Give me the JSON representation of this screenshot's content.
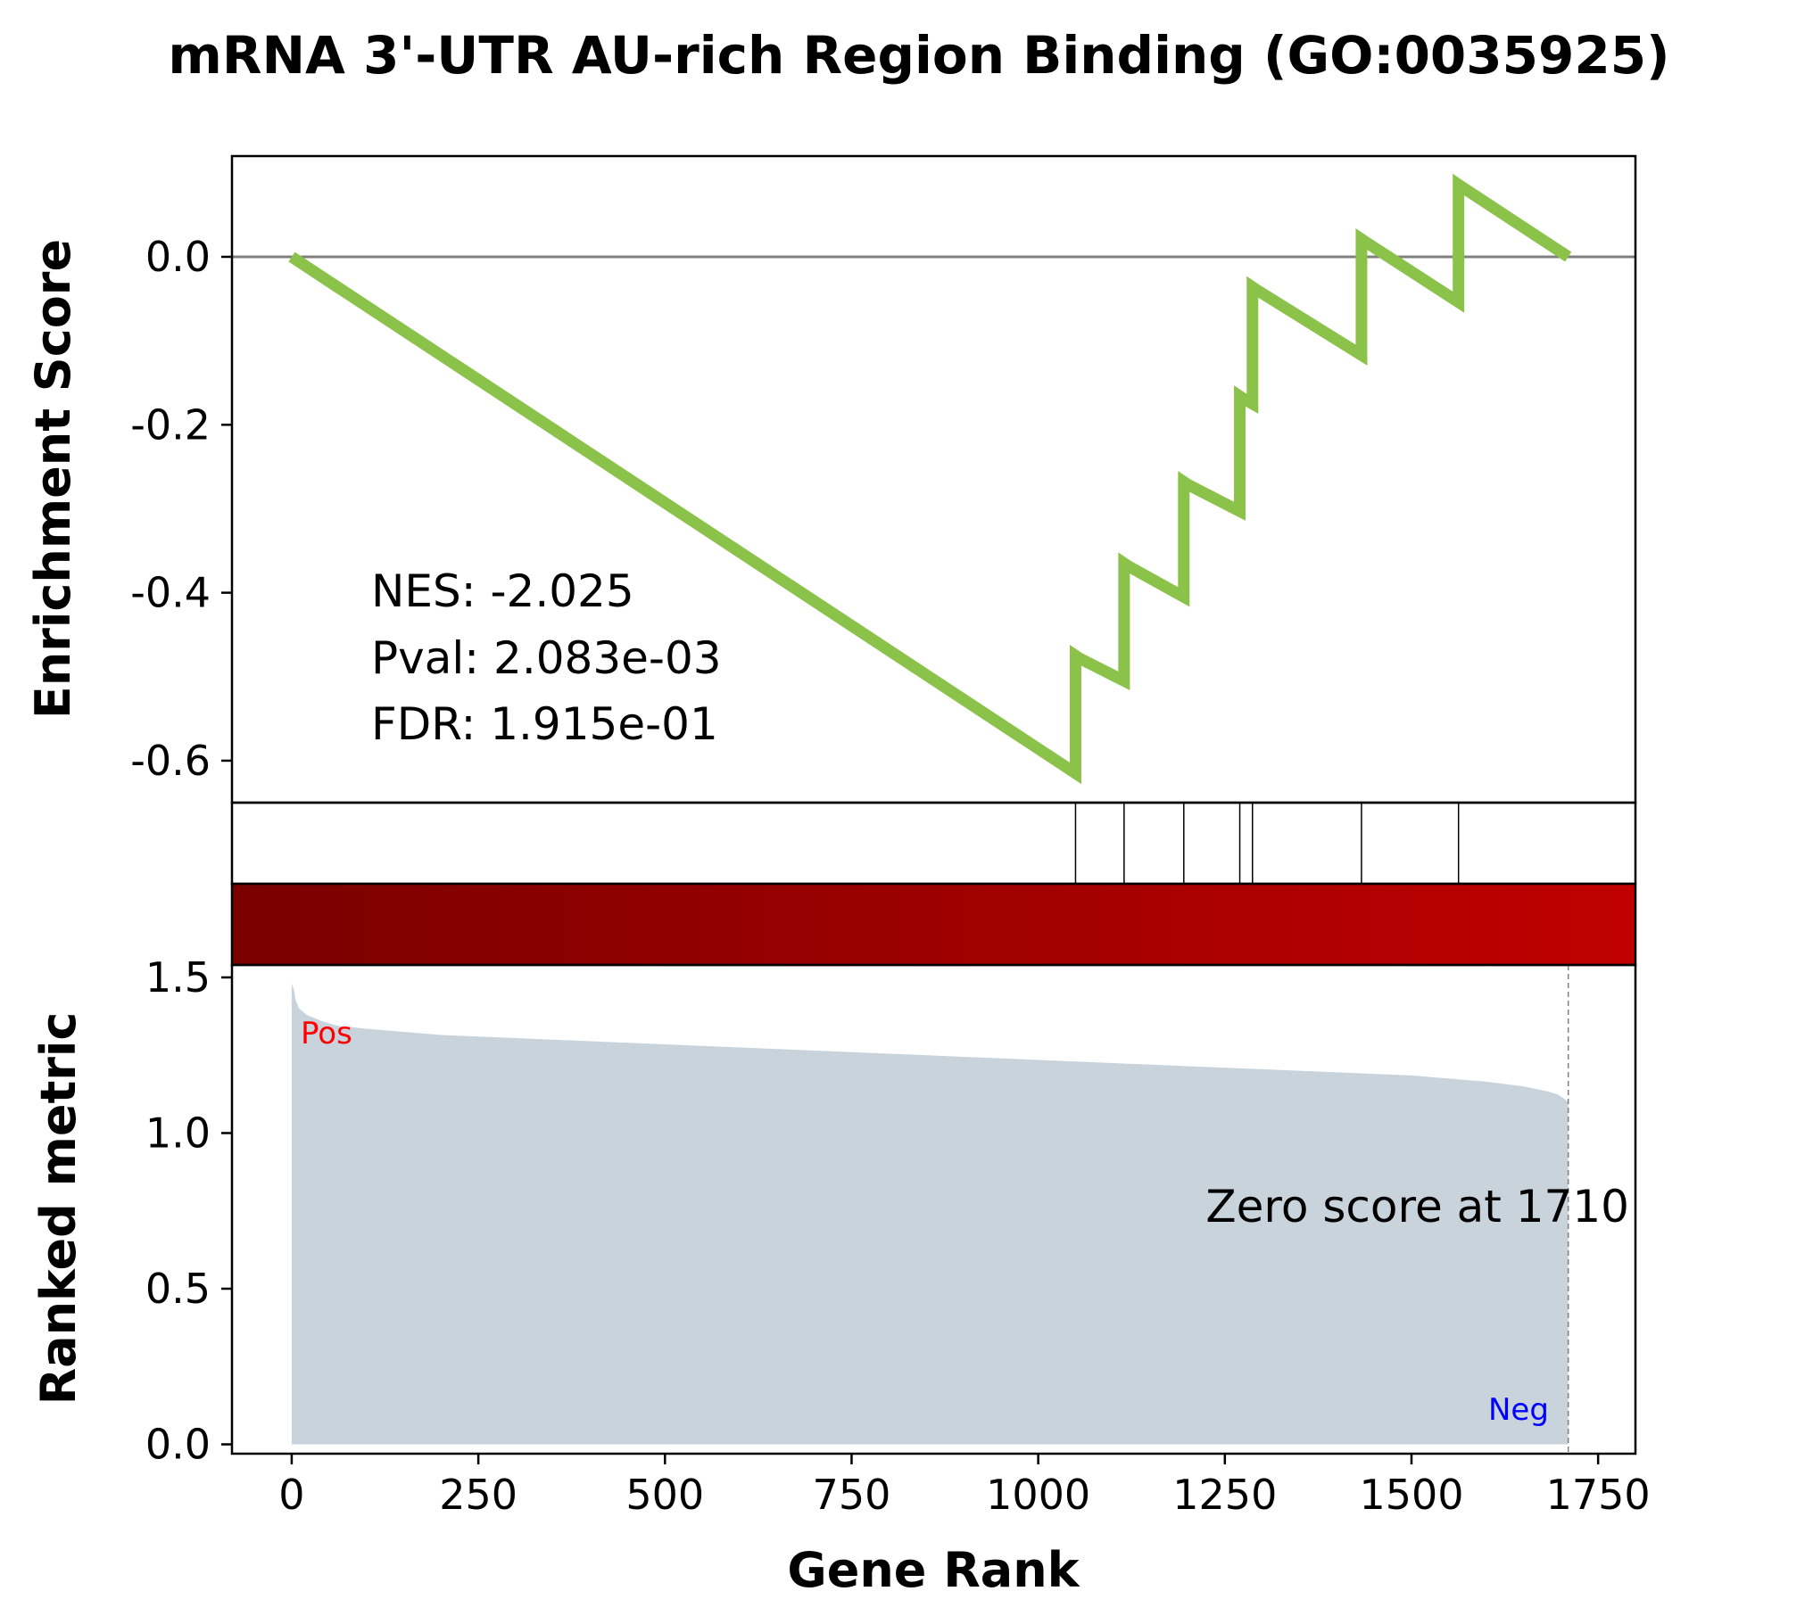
{
  "chart_data": {
    "type": "line",
    "title": "mRNA 3'-UTR AU-rich Region Binding (GO:0035925)",
    "ylabel_top": "Enrichment Score",
    "ylabel_bottom": "Ranked metric",
    "xlabel": "Gene Rank",
    "xlim": [
      -80,
      1800
    ],
    "ylim_top": [
      -0.65,
      0.12
    ],
    "ylim_bottom": [
      -0.03,
      1.54
    ],
    "x_ticks": [
      0,
      250,
      500,
      750,
      1000,
      1250,
      1500,
      1750
    ],
    "x_tick_labels": [
      "0",
      "250",
      "500",
      "750",
      "1000",
      "1250",
      "1500",
      "1750"
    ],
    "y_ticks_top": [
      0.0,
      -0.2,
      -0.4,
      -0.6
    ],
    "y_tick_labels_top": [
      "0.0",
      "-0.2",
      "-0.4",
      "-0.6"
    ],
    "y_ticks_bottom": [
      0.0,
      0.5,
      1.0,
      1.5
    ],
    "y_tick_labels_bottom": [
      "0.0",
      "0.5",
      "1.0",
      "1.5"
    ],
    "grid": false,
    "baseline": 0.0,
    "enrichment_curve": {
      "x": [
        0,
        1050,
        1050,
        1055,
        1115,
        1115,
        1120,
        1195,
        1195,
        1200,
        1270,
        1270,
        1275,
        1287,
        1287,
        1292,
        1433,
        1433,
        1438,
        1563,
        1563,
        1568,
        1710
      ],
      "y": [
        0.0,
        -0.615,
        -0.475,
        -0.478,
        -0.505,
        -0.365,
        -0.368,
        -0.405,
        -0.268,
        -0.271,
        -0.303,
        -0.166,
        -0.169,
        -0.175,
        -0.036,
        -0.039,
        -0.117,
        0.021,
        0.018,
        -0.054,
        0.086,
        0.083,
        0.0
      ]
    },
    "hit_positions": [
      1050,
      1115,
      1195,
      1270,
      1287,
      1433,
      1563
    ],
    "ranked_metric": {
      "x": [
        0,
        3,
        5,
        10,
        20,
        40,
        60,
        80,
        100,
        150,
        200,
        250,
        300,
        400,
        500,
        600,
        700,
        800,
        900,
        1000,
        1100,
        1200,
        1300,
        1400,
        1500,
        1550,
        1600,
        1650,
        1680,
        1695,
        1705,
        1710
      ],
      "y": [
        1.48,
        1.46,
        1.43,
        1.4,
        1.38,
        1.36,
        1.345,
        1.34,
        1.335,
        1.325,
        1.315,
        1.31,
        1.305,
        1.295,
        1.285,
        1.275,
        1.265,
        1.255,
        1.245,
        1.235,
        1.225,
        1.215,
        1.205,
        1.195,
        1.185,
        1.175,
        1.165,
        1.15,
        1.135,
        1.125,
        1.11,
        1.1
      ]
    },
    "stats": [
      "NES: -2.025",
      "Pval: 2.083e-03",
      "FDR: 1.915e-01"
    ],
    "zero_score_label": "Zero score at 1710",
    "zero_score_rank": 1710,
    "pos_label": "Pos",
    "neg_label": "Neg",
    "colors": {
      "curve": "#8bc34a",
      "baseline": "#808080",
      "metric_fill": "#c8d3dc",
      "pos_label": "#ff0000",
      "neg_label": "#0000ff",
      "gradient_start": "#7a0000",
      "gradient_end": "#c00000"
    }
  }
}
